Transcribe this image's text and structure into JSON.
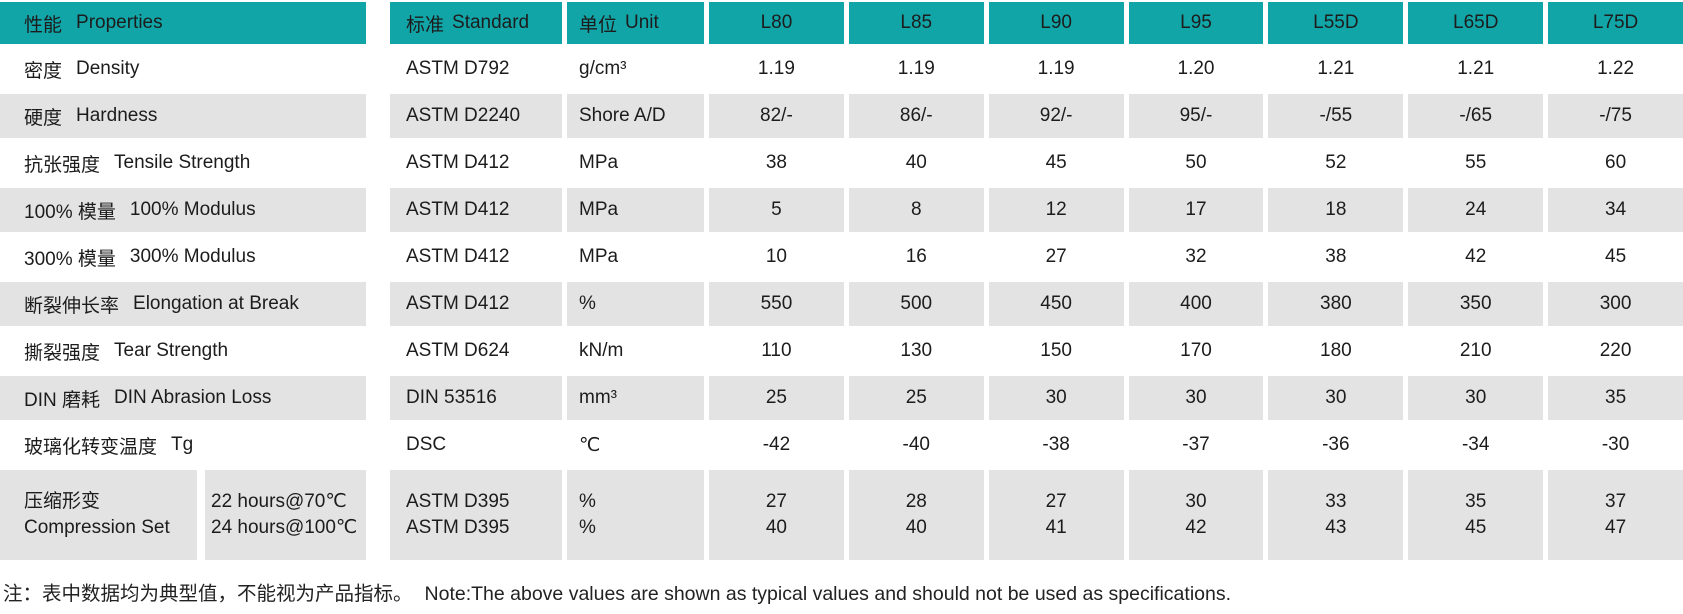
{
  "colors": {
    "header_bg": "#12a5a8",
    "row_alt_bg": "#e4e3e3",
    "text": "#1c1c1c"
  },
  "table": {
    "header": {
      "properties": {
        "zh": "性能",
        "en": "Properties"
      },
      "standard": {
        "zh": "标准",
        "en": "Standard"
      },
      "unit": {
        "zh": "单位",
        "en": "Unit"
      },
      "grades": [
        "L80",
        "L85",
        "L90",
        "L95",
        "L55D",
        "L65D",
        "L75D"
      ]
    },
    "rows": [
      {
        "zh": "密度",
        "en": "Density",
        "standard": "ASTM D792",
        "unit": "g/cm³",
        "values": [
          "1.19",
          "1.19",
          "1.19",
          "1.20",
          "1.21",
          "1.21",
          "1.22"
        ]
      },
      {
        "zh": "硬度",
        "en": "Hardness",
        "standard": "ASTM D2240",
        "unit": "Shore A/D",
        "values": [
          "82/-",
          "86/-",
          "92/-",
          "95/-",
          "-/55",
          "-/65",
          "-/75"
        ]
      },
      {
        "zh": "抗张强度",
        "en": "Tensile Strength",
        "standard": "ASTM D412",
        "unit": "MPa",
        "values": [
          "38",
          "40",
          "45",
          "50",
          "52",
          "55",
          "60"
        ]
      },
      {
        "zh": "100% 模量",
        "en": "100% Modulus",
        "standard": "ASTM D412",
        "unit": "MPa",
        "values": [
          "5",
          "8",
          "12",
          "17",
          "18",
          "24",
          "34"
        ]
      },
      {
        "zh": "300% 模量",
        "en": "300% Modulus",
        "standard": "ASTM D412",
        "unit": "MPa",
        "values": [
          "10",
          "16",
          "27",
          "32",
          "38",
          "42",
          "45"
        ]
      },
      {
        "zh": "断裂伸长率",
        "en": "Elongation at Break",
        "standard": "ASTM D412",
        "unit": "%",
        "values": [
          "550",
          "500",
          "450",
          "400",
          "380",
          "350",
          "300"
        ]
      },
      {
        "zh": "撕裂强度",
        "en": "Tear Strength",
        "standard": "ASTM D624",
        "unit": "kN/m",
        "values": [
          "110",
          "130",
          "150",
          "170",
          "180",
          "210",
          "220"
        ]
      },
      {
        "zh": "DIN 磨耗",
        "en": "DIN Abrasion Loss",
        "standard": "DIN 53516",
        "unit": "mm³",
        "values": [
          "25",
          "25",
          "30",
          "30",
          "30",
          "30",
          "35"
        ]
      },
      {
        "zh": "玻璃化转变温度",
        "en": "Tg",
        "standard": "DSC",
        "unit": "℃",
        "values": [
          "-42",
          "-40",
          "-38",
          "-37",
          "-36",
          "-34",
          "-30"
        ]
      }
    ],
    "compression_row": {
      "zh": "压缩形变",
      "en": "Compression Set",
      "conditions": [
        "22 hours@70℃",
        "24 hours@100℃"
      ],
      "standards": [
        "ASTM D395",
        "ASTM D395"
      ],
      "units": [
        "%",
        "%"
      ],
      "values": [
        [
          "27",
          "40"
        ],
        [
          "28",
          "40"
        ],
        [
          "27",
          "41"
        ],
        [
          "30",
          "42"
        ],
        [
          "33",
          "43"
        ],
        [
          "35",
          "45"
        ],
        [
          "37",
          "47"
        ]
      ]
    },
    "note": {
      "zh": "注：表中数据均为典型值，不能视为产品指标。",
      "en": "Note:The above values are shown as typical values and should not be used as specifications."
    }
  }
}
